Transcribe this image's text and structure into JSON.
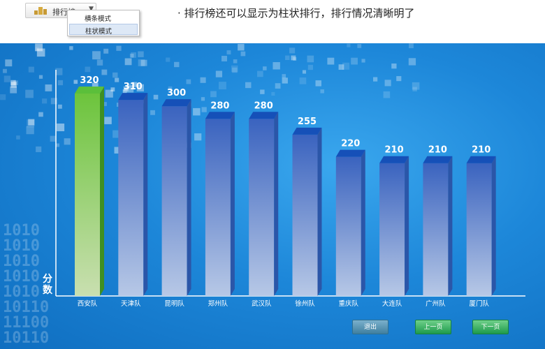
{
  "toolbar": {
    "rank_button_label": "排行榜",
    "dropdown_items": [
      "横条模式",
      "柱状模式"
    ],
    "selected_item": "柱状模式"
  },
  "caption": "· 排行榜还可以显示为柱状排行，排行情况清晰明了",
  "chart_data": {
    "type": "bar",
    "categories": [
      "西安队",
      "天津队",
      "昆明队",
      "郑州队",
      "武汉队",
      "徐州队",
      "重庆队",
      "大连队",
      "广州队",
      "厦门队"
    ],
    "values": [
      320,
      310,
      300,
      280,
      280,
      255,
      220,
      210,
      210,
      210
    ],
    "ylabel": "分数",
    "ylim": [
      0,
      320
    ],
    "highlight_index": 0,
    "colors": {
      "highlight": "#5bbf3a",
      "bar": "#3f6fc6",
      "bar_top": "#1550b8"
    }
  },
  "nav": {
    "exit_label": "退出",
    "prev_label": "上一页",
    "next_label": "下一页"
  },
  "background": {
    "digit_rows": [
      "1010",
      "1010",
      "1010",
      "1010",
      "1010",
      "10110",
      "11100",
      "10110"
    ]
  }
}
